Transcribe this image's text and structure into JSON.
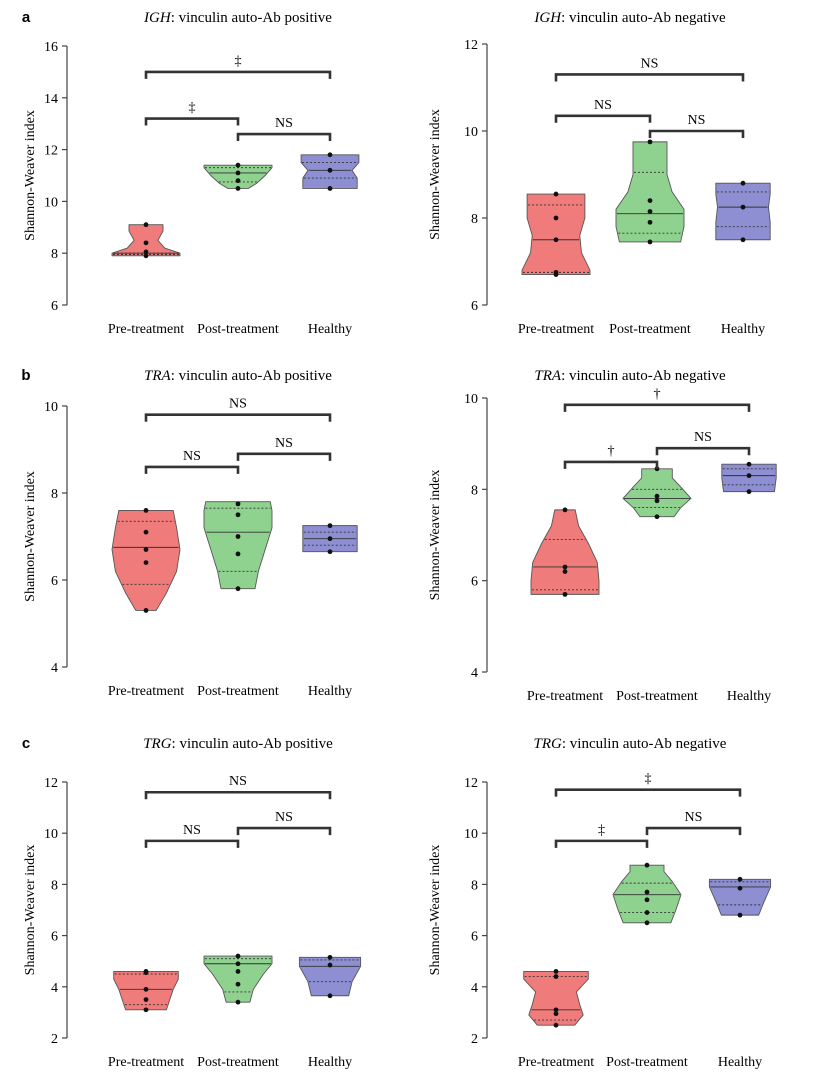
{
  "chart_data": [
    {
      "panel": "a",
      "type": "violin",
      "title_gene": "IGH",
      "title_rest": ": vinculin auto-Ab positive",
      "ylabel": "Shannon-Weaver index",
      "xlabel": "",
      "categories": [
        "Pre-treatment",
        "Post-treatment",
        "Healthy"
      ],
      "ylim": [
        6,
        16
      ],
      "yticks": [
        6,
        8,
        10,
        12,
        14,
        16
      ],
      "groups": [
        {
          "color": "#f07b7b",
          "min": 7.9,
          "max": 9.1,
          "median": 8.0,
          "q1": 7.95,
          "q3": 8.0,
          "points": [
            9.1,
            8.4,
            8.05,
            7.9
          ],
          "profile": [
            [
              7.9,
              1.0
            ],
            [
              8.0,
              1.0
            ],
            [
              8.2,
              0.55
            ],
            [
              8.5,
              0.35
            ],
            [
              8.85,
              0.5
            ],
            [
              9.1,
              0.5
            ]
          ]
        },
        {
          "color": "#8fd18f",
          "min": 10.5,
          "max": 11.4,
          "median": 11.1,
          "q1": 10.75,
          "q3": 11.3,
          "points": [
            11.4,
            11.1,
            10.8,
            10.5
          ],
          "profile": [
            [
              10.5,
              0.3
            ],
            [
              10.7,
              0.55
            ],
            [
              11.0,
              0.8
            ],
            [
              11.3,
              1.0
            ],
            [
              11.4,
              1.0
            ]
          ]
        },
        {
          "color": "#8d8fd2",
          "min": 10.5,
          "max": 11.8,
          "median": 11.2,
          "q1": 10.9,
          "q3": 11.5,
          "points": [
            11.8,
            11.2,
            10.5
          ],
          "profile": [
            [
              10.5,
              0.8
            ],
            [
              10.9,
              0.8
            ],
            [
              11.2,
              0.65
            ],
            [
              11.5,
              0.85
            ],
            [
              11.8,
              0.85
            ]
          ]
        }
      ],
      "comparisons": [
        {
          "from": 0,
          "to": 2,
          "y": 15.0,
          "label": "‡"
        },
        {
          "from": 0,
          "to": 1,
          "y": 13.2,
          "label": "‡"
        },
        {
          "from": 1,
          "to": 2,
          "y": 12.6,
          "label": "NS"
        }
      ]
    },
    {
      "panel": "",
      "type": "violin",
      "title_gene": "IGH",
      "title_rest": ": vinculin auto-Ab negative",
      "ylabel": "Shannon-Weaver index",
      "xlabel": "",
      "categories": [
        "Pre-treatment",
        "Post-treatment",
        "Healthy"
      ],
      "ylim": [
        6,
        12
      ],
      "yticks": [
        6,
        8,
        10,
        12
      ],
      "groups": [
        {
          "color": "#f07b7b",
          "min": 6.7,
          "max": 8.55,
          "median": 7.5,
          "q1": 6.75,
          "q3": 8.3,
          "points": [
            8.55,
            8.0,
            7.5,
            6.75,
            6.7
          ],
          "profile": [
            [
              6.7,
              1.0
            ],
            [
              6.8,
              1.0
            ],
            [
              7.2,
              0.75
            ],
            [
              7.6,
              0.7
            ],
            [
              8.0,
              0.85
            ],
            [
              8.55,
              0.85
            ]
          ]
        },
        {
          "color": "#8fd18f",
          "min": 7.45,
          "max": 9.75,
          "median": 8.1,
          "q1": 7.65,
          "q3": 9.05,
          "points": [
            9.75,
            8.4,
            8.15,
            7.9,
            7.45
          ],
          "profile": [
            [
              7.45,
              0.9
            ],
            [
              7.8,
              1.0
            ],
            [
              8.2,
              1.0
            ],
            [
              8.6,
              0.65
            ],
            [
              9.0,
              0.5
            ],
            [
              9.4,
              0.5
            ],
            [
              9.75,
              0.5
            ]
          ]
        },
        {
          "color": "#8d8fd2",
          "min": 7.5,
          "max": 8.8,
          "median": 8.25,
          "q1": 7.8,
          "q3": 8.6,
          "points": [
            8.8,
            8.25,
            7.5
          ],
          "profile": [
            [
              7.5,
              0.8
            ],
            [
              7.9,
              0.8
            ],
            [
              8.25,
              0.75
            ],
            [
              8.55,
              0.8
            ],
            [
              8.8,
              0.8
            ]
          ]
        }
      ],
      "comparisons": [
        {
          "from": 0,
          "to": 2,
          "y": 11.3,
          "label": "NS"
        },
        {
          "from": 0,
          "to": 1,
          "y": 10.35,
          "label": "NS"
        },
        {
          "from": 1,
          "to": 2,
          "y": 10.0,
          "label": "NS"
        }
      ]
    },
    {
      "panel": "b",
      "type": "violin",
      "title_gene": "TRA",
      "title_rest": ": vinculin auto-Ab positive",
      "ylabel": "Shannon-Weaver index",
      "xlabel": "",
      "categories": [
        "Pre-treatment",
        "Post-treatment",
        "Healthy"
      ],
      "ylim": [
        4,
        10
      ],
      "yticks": [
        4,
        6,
        8,
        10
      ],
      "groups": [
        {
          "color": "#f07b7b",
          "min": 5.3,
          "max": 7.6,
          "median": 6.75,
          "q1": 5.9,
          "q3": 7.35,
          "points": [
            7.6,
            7.1,
            6.7,
            6.4,
            5.3
          ],
          "profile": [
            [
              5.3,
              0.3
            ],
            [
              5.7,
              0.6
            ],
            [
              6.2,
              0.9
            ],
            [
              6.7,
              1.0
            ],
            [
              7.2,
              0.9
            ],
            [
              7.6,
              0.8
            ]
          ]
        },
        {
          "color": "#8fd18f",
          "min": 5.8,
          "max": 7.8,
          "median": 7.1,
          "q1": 6.2,
          "q3": 7.65,
          "points": [
            7.75,
            7.5,
            7.0,
            6.6,
            5.8
          ],
          "profile": [
            [
              5.8,
              0.5
            ],
            [
              6.2,
              0.6
            ],
            [
              6.7,
              0.8
            ],
            [
              7.2,
              1.0
            ],
            [
              7.6,
              1.0
            ],
            [
              7.8,
              0.95
            ]
          ]
        },
        {
          "color": "#8d8fd2",
          "min": 6.65,
          "max": 7.25,
          "median": 6.95,
          "q1": 6.8,
          "q3": 7.1,
          "points": [
            7.25,
            6.95,
            6.65
          ],
          "profile": [
            [
              6.65,
              0.8
            ],
            [
              6.95,
              0.8
            ],
            [
              7.25,
              0.8
            ]
          ]
        }
      ],
      "comparisons": [
        {
          "from": 0,
          "to": 2,
          "y": 9.8,
          "label": "NS"
        },
        {
          "from": 0,
          "to": 1,
          "y": 8.6,
          "label": "NS"
        },
        {
          "from": 1,
          "to": 2,
          "y": 8.9,
          "label": "NS"
        }
      ]
    },
    {
      "panel": "",
      "type": "violin",
      "title_gene": "TRA",
      "title_rest": ": vinculin auto-Ab negative",
      "ylabel": "Shannon-Weaver index",
      "xlabel": "",
      "categories": [
        "Pre-treatment",
        "Post-treatment",
        "Healthy"
      ],
      "ylim": [
        4,
        10
      ],
      "yticks": [
        4,
        6,
        8,
        10
      ],
      "groups": [
        {
          "color": "#f07b7b",
          "min": 5.7,
          "max": 7.55,
          "median": 6.3,
          "q1": 5.8,
          "q3": 6.9,
          "points": [
            7.55,
            6.3,
            6.2,
            5.7
          ],
          "profile": [
            [
              5.7,
              1.0
            ],
            [
              6.0,
              1.0
            ],
            [
              6.4,
              0.95
            ],
            [
              6.8,
              0.7
            ],
            [
              7.2,
              0.4
            ],
            [
              7.55,
              0.3
            ]
          ]
        },
        {
          "color": "#8fd18f",
          "min": 7.4,
          "max": 8.45,
          "median": 7.8,
          "q1": 7.6,
          "q3": 8.0,
          "points": [
            8.45,
            7.85,
            7.75,
            7.4
          ],
          "profile": [
            [
              7.4,
              0.5
            ],
            [
              7.6,
              0.7
            ],
            [
              7.8,
              1.0
            ],
            [
              8.05,
              0.7
            ],
            [
              8.25,
              0.45
            ],
            [
              8.45,
              0.45
            ]
          ]
        },
        {
          "color": "#8d8fd2",
          "min": 7.95,
          "max": 8.55,
          "median": 8.3,
          "q1": 8.1,
          "q3": 8.45,
          "points": [
            8.55,
            8.3,
            7.95
          ],
          "profile": [
            [
              7.95,
              0.75
            ],
            [
              8.25,
              0.8
            ],
            [
              8.55,
              0.8
            ]
          ]
        }
      ],
      "comparisons": [
        {
          "from": 0,
          "to": 2,
          "y": 9.85,
          "label": "†"
        },
        {
          "from": 0,
          "to": 1,
          "y": 8.6,
          "label": "†"
        },
        {
          "from": 1,
          "to": 2,
          "y": 8.9,
          "label": "NS"
        }
      ]
    },
    {
      "panel": "c",
      "type": "violin",
      "title_gene": "TRG",
      "title_rest": ": vinculin auto-Ab positive",
      "ylabel": "Shannon-Weaver index",
      "xlabel": "",
      "categories": [
        "Pre-treatment",
        "Post-treatment",
        "Healthy"
      ],
      "ylim": [
        2,
        12
      ],
      "yticks": [
        2,
        4,
        6,
        8,
        10,
        12
      ],
      "groups": [
        {
          "color": "#f07b7b",
          "min": 3.1,
          "max": 4.6,
          "median": 3.9,
          "q1": 3.3,
          "q3": 4.5,
          "points": [
            4.6,
            4.55,
            3.9,
            3.5,
            3.1
          ],
          "profile": [
            [
              3.1,
              0.6
            ],
            [
              3.5,
              0.7
            ],
            [
              3.9,
              0.8
            ],
            [
              4.3,
              0.95
            ],
            [
              4.6,
              0.95
            ]
          ]
        },
        {
          "color": "#8fd18f",
          "min": 3.4,
          "max": 5.2,
          "median": 4.9,
          "q1": 3.8,
          "q3": 5.1,
          "points": [
            5.2,
            4.9,
            4.6,
            4.1,
            3.4
          ],
          "profile": [
            [
              3.4,
              0.35
            ],
            [
              3.9,
              0.45
            ],
            [
              4.5,
              0.75
            ],
            [
              4.9,
              1.0
            ],
            [
              5.2,
              1.0
            ]
          ]
        },
        {
          "color": "#8d8fd2",
          "min": 3.65,
          "max": 5.15,
          "median": 4.8,
          "q1": 4.2,
          "q3": 5.05,
          "points": [
            5.15,
            4.85,
            3.65
          ],
          "profile": [
            [
              3.65,
              0.55
            ],
            [
              4.2,
              0.65
            ],
            [
              4.8,
              0.9
            ],
            [
              5.15,
              0.9
            ]
          ]
        }
      ],
      "comparisons": [
        {
          "from": 0,
          "to": 2,
          "y": 11.6,
          "label": "NS"
        },
        {
          "from": 0,
          "to": 1,
          "y": 9.7,
          "label": "NS"
        },
        {
          "from": 1,
          "to": 2,
          "y": 10.2,
          "label": "NS"
        }
      ]
    },
    {
      "panel": "",
      "type": "violin",
      "title_gene": "TRG",
      "title_rest": ": vinculin auto-Ab negative",
      "ylabel": "Shannon-Weaver index",
      "xlabel": "",
      "categories": [
        "Pre-treatment",
        "Post-treatment",
        "Healthy"
      ],
      "ylim": [
        2,
        12
      ],
      "yticks": [
        2,
        4,
        6,
        8,
        10,
        12
      ],
      "groups": [
        {
          "color": "#f07b7b",
          "min": 2.5,
          "max": 4.6,
          "median": 3.1,
          "q1": 2.7,
          "q3": 4.4,
          "points": [
            4.6,
            4.4,
            3.1,
            2.95,
            2.5
          ],
          "profile": [
            [
              2.5,
              0.55
            ],
            [
              2.9,
              0.8
            ],
            [
              3.3,
              0.7
            ],
            [
              3.8,
              0.6
            ],
            [
              4.3,
              0.95
            ],
            [
              4.6,
              0.95
            ]
          ]
        },
        {
          "color": "#8fd18f",
          "min": 6.5,
          "max": 8.75,
          "median": 7.6,
          "q1": 6.9,
          "q3": 8.05,
          "points": [
            8.75,
            7.7,
            7.4,
            6.9,
            6.5
          ],
          "profile": [
            [
              6.5,
              0.7
            ],
            [
              7.0,
              0.85
            ],
            [
              7.6,
              1.0
            ],
            [
              8.1,
              0.75
            ],
            [
              8.5,
              0.5
            ],
            [
              8.75,
              0.5
            ]
          ]
        },
        {
          "color": "#8d8fd2",
          "min": 6.8,
          "max": 8.2,
          "median": 7.9,
          "q1": 7.2,
          "q3": 8.1,
          "points": [
            8.2,
            7.85,
            6.8
          ],
          "profile": [
            [
              6.8,
              0.55
            ],
            [
              7.3,
              0.7
            ],
            [
              7.9,
              0.9
            ],
            [
              8.2,
              0.9
            ]
          ]
        }
      ],
      "comparisons": [
        {
          "from": 0,
          "to": 2,
          "y": 11.7,
          "label": "‡"
        },
        {
          "from": 0,
          "to": 1,
          "y": 9.7,
          "label": "‡"
        },
        {
          "from": 1,
          "to": 2,
          "y": 10.2,
          "label": "NS"
        }
      ]
    }
  ]
}
